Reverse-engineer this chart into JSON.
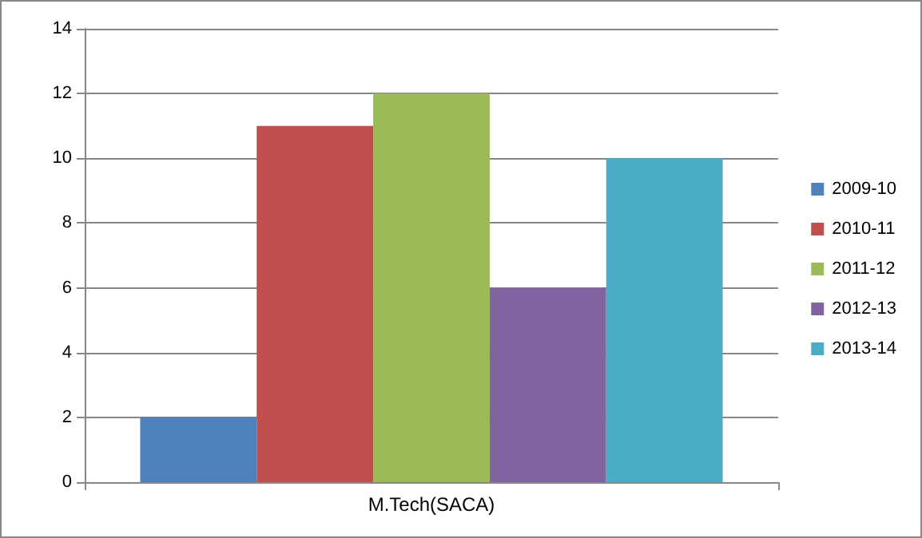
{
  "chart_data": {
    "type": "bar",
    "categories": [
      "M.Tech(SACA)"
    ],
    "series": [
      {
        "name": "2009-10",
        "color": "#4f81bd",
        "values": [
          2
        ]
      },
      {
        "name": "2010-11",
        "color": "#c0504d",
        "values": [
          11
        ]
      },
      {
        "name": "2011-12",
        "color": "#9bbb59",
        "values": [
          12
        ]
      },
      {
        "name": "2012-13",
        "color": "#8064a2",
        "values": [
          6
        ]
      },
      {
        "name": "2013-14",
        "color": "#4bacc6",
        "values": [
          10
        ]
      }
    ],
    "ylim": [
      0,
      14
    ],
    "yticks": [
      0,
      2,
      4,
      6,
      8,
      10,
      12,
      14
    ],
    "grid": "y",
    "legend": "right"
  }
}
